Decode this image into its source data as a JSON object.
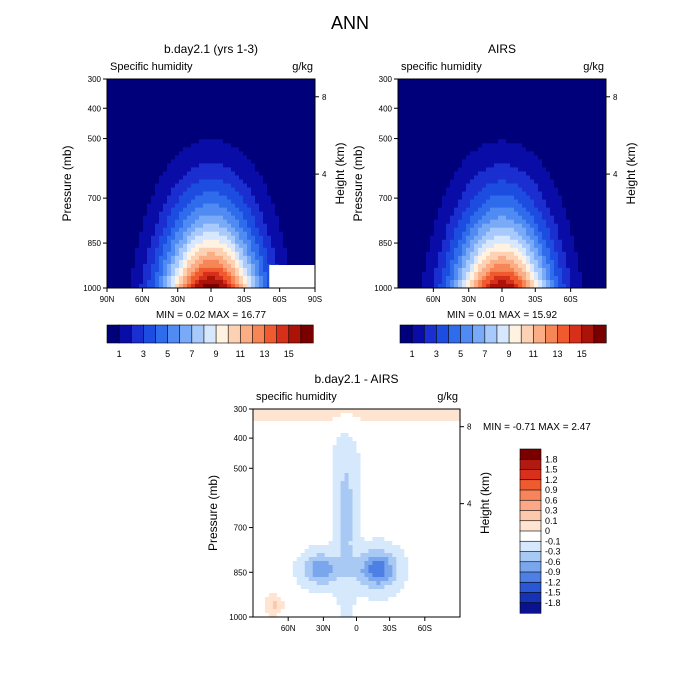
{
  "figure": {
    "title": "ANN"
  },
  "chart_data": [
    {
      "type": "heatmap",
      "title": "b.day2.1 (yrs 1-3)",
      "left_label": "Specific humidity",
      "right_label": "g/kg",
      "xlabel": "",
      "ylabel": "Pressure (mb)",
      "ylabel_right": "Height (km)",
      "x_ticks": [
        "90N",
        "60N",
        "30N",
        "0",
        "30S",
        "60S",
        "90S"
      ],
      "y_ticks": [
        "300",
        "400",
        "500",
        "700",
        "850",
        "1000"
      ],
      "y_right_ticks": [
        "8",
        "4"
      ],
      "ylim": [
        1000,
        300
      ],
      "stats": {
        "min_label": "MIN =",
        "min": "0.02",
        "max_label": "MAX =",
        "max": "16.77"
      },
      "field": {
        "peak": 16.77,
        "floor": 0.02
      },
      "colorbar": {
        "ticks": [
          "1",
          "3",
          "5",
          "7",
          "9",
          "11",
          "13",
          "15"
        ]
      },
      "colors": [
        "#00007a",
        "#0a0ca8",
        "#1b2ed0",
        "#1d4de0",
        "#2f6cec",
        "#4f8bf2",
        "#78aaf7",
        "#a8c9fb",
        "#d7e7fd",
        "#fff2e0",
        "#fdd2b4",
        "#fbae86",
        "#f78656",
        "#ef5a2e",
        "#d6301a",
        "#ab1208",
        "#7a0000"
      ]
    },
    {
      "type": "heatmap",
      "title": "AIRS",
      "left_label": "specific humidity",
      "right_label": "g/kg",
      "xlabel": "",
      "ylabel": "Pressure (mb)",
      "ylabel_right": "Height (km)",
      "x_ticks": [
        "60N",
        "30N",
        "0",
        "30S",
        "60S"
      ],
      "y_ticks": [
        "300",
        "400",
        "500",
        "700",
        "850",
        "1000"
      ],
      "y_right_ticks": [
        "8",
        "4"
      ],
      "ylim": [
        1000,
        300
      ],
      "stats": {
        "min_label": "MIN =",
        "min": "0.01",
        "max_label": "MAX =",
        "max": "15.92"
      },
      "field": {
        "peak": 15.92,
        "floor": 0.01
      },
      "colorbar": {
        "ticks": [
          "1",
          "3",
          "5",
          "7",
          "9",
          "11",
          "13",
          "15"
        ]
      },
      "colors": [
        "#00007a",
        "#0a0ca8",
        "#1b2ed0",
        "#1d4de0",
        "#2f6cec",
        "#4f8bf2",
        "#78aaf7",
        "#a8c9fb",
        "#d7e7fd",
        "#fff2e0",
        "#fdd2b4",
        "#fbae86",
        "#f78656",
        "#ef5a2e",
        "#d6301a",
        "#ab1208",
        "#7a0000"
      ]
    },
    {
      "type": "heatmap",
      "title": "b.day2.1 - AIRS",
      "left_label": "specific humidity",
      "right_label": "g/kg",
      "xlabel": "",
      "ylabel": "Pressure (mb)",
      "ylabel_right": "Height (km)",
      "x_ticks": [
        "60N",
        "30N",
        "0",
        "30S",
        "60S"
      ],
      "y_ticks": [
        "300",
        "400",
        "500",
        "700",
        "850",
        "1000"
      ],
      "y_right_ticks": [
        "8",
        "4"
      ],
      "ylim": [
        1000,
        300
      ],
      "stats": {
        "min_label": "MIN =",
        "min": "-0.71",
        "max_label": "MAX =",
        "max": "2.47"
      },
      "field": {
        "peak": 2.47,
        "floor": -0.71
      },
      "colorbar": {
        "ticks": [
          "1.8",
          "1.5",
          "1.2",
          "0.9",
          "0.6",
          "0.3",
          "0.1",
          "0",
          "-0.1",
          "-0.3",
          "-0.6",
          "-0.9",
          "-1.2",
          "-1.5",
          "-1.8"
        ]
      },
      "colors": [
        "#7a0000",
        "#b01a10",
        "#d8301a",
        "#ef5a2e",
        "#f7845a",
        "#fba888",
        "#fdc9ac",
        "#ffe4d2",
        "#ffffff",
        "#d6e8fb",
        "#a9c9f5",
        "#7aa6ee",
        "#4d7fe4",
        "#2a57d4",
        "#1732b4",
        "#0a1290"
      ]
    }
  ]
}
